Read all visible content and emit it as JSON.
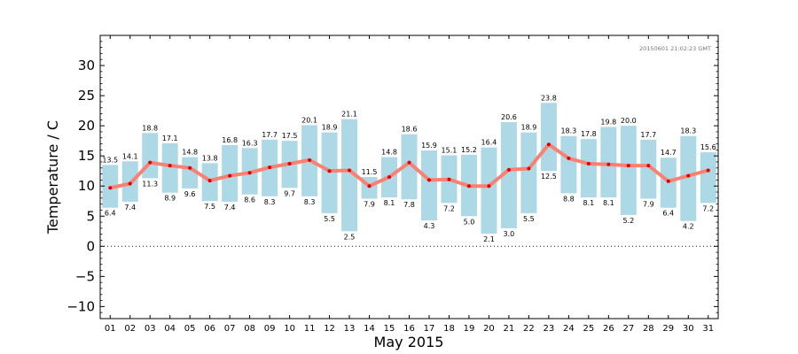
{
  "chart_data": {
    "type": "bar",
    "xlabel": "May 2015",
    "ylabel": "Temperature / C",
    "timestamp": "20150601 21:02:23 GMT",
    "ylim": [
      -12,
      35
    ],
    "yticks": [
      -10,
      -5,
      0,
      5,
      10,
      15,
      20,
      25,
      30
    ],
    "ytick_labels": [
      "−10",
      "−5",
      "0",
      "5",
      "10",
      "15",
      "20",
      "25",
      "30"
    ],
    "categories": [
      "01",
      "02",
      "03",
      "04",
      "05",
      "06",
      "07",
      "08",
      "09",
      "10",
      "11",
      "12",
      "13",
      "14",
      "15",
      "16",
      "17",
      "18",
      "19",
      "20",
      "21",
      "22",
      "23",
      "24",
      "25",
      "26",
      "27",
      "28",
      "29",
      "30",
      "31"
    ],
    "series": [
      {
        "name": "",
        "kind": "range-bar",
        "field": "max",
        "values": [
          13.5,
          14.1,
          18.8,
          17.1,
          14.8,
          13.8,
          16.8,
          16.3,
          17.7,
          17.5,
          20.1,
          18.9,
          21.1,
          11.5,
          14.8,
          18.6,
          15.9,
          15.1,
          15.2,
          16.4,
          20.6,
          18.9,
          23.8,
          18.3,
          17.8,
          19.8,
          20.0,
          17.7,
          14.7,
          18.3,
          15.6
        ]
      },
      {
        "name": "",
        "kind": "range-bar",
        "field": "min",
        "values": [
          6.4,
          7.4,
          11.3,
          8.9,
          9.6,
          7.5,
          7.4,
          8.6,
          8.3,
          9.7,
          8.3,
          5.5,
          2.5,
          7.9,
          8.1,
          7.8,
          4.3,
          7.2,
          5.0,
          2.1,
          3.0,
          5.5,
          12.5,
          8.8,
          8.1,
          8.1,
          5.2,
          7.9,
          6.4,
          4.2,
          7.2
        ]
      },
      {
        "name": "",
        "kind": "line",
        "field": "mean",
        "values": [
          9.7,
          10.4,
          13.9,
          13.4,
          13.0,
          10.9,
          11.7,
          12.2,
          13.1,
          13.7,
          14.3,
          12.5,
          12.6,
          10.0,
          11.5,
          13.9,
          11.0,
          11.1,
          10.0,
          10.0,
          12.7,
          12.9,
          16.9,
          14.6,
          13.7,
          13.6,
          13.4,
          13.4,
          10.8,
          11.7,
          12.6
        ]
      }
    ],
    "reference_line": {
      "y": 0,
      "style": "dotted"
    },
    "grid": false,
    "colors": {
      "bar": "#add8e6",
      "line": "#fa8072",
      "marker": "#dd0000",
      "reference": "#0000cc"
    }
  }
}
